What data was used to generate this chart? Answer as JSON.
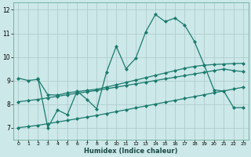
{
  "xlabel": "Humidex (Indice chaleur)",
  "background_color": "#cce8e8",
  "grid_color": "#b0cccc",
  "line_color": "#1a7a6e",
  "xlim": [
    -0.5,
    23.5
  ],
  "ylim": [
    6.5,
    12.3
  ],
  "yticks": [
    7,
    8,
    9,
    10,
    11,
    12
  ],
  "xticks": [
    0,
    1,
    2,
    3,
    4,
    5,
    6,
    7,
    8,
    9,
    10,
    11,
    12,
    13,
    14,
    15,
    16,
    17,
    18,
    19,
    20,
    21,
    22,
    23
  ],
  "line_main_x": [
    2,
    3,
    4,
    5,
    6,
    7,
    8,
    9,
    10,
    11,
    12,
    13,
    14,
    15,
    16,
    17,
    18,
    19,
    20,
    21,
    22,
    23
  ],
  "line_main_y": [
    9.1,
    7.0,
    7.75,
    7.55,
    8.55,
    8.2,
    7.8,
    9.35,
    10.45,
    9.5,
    9.95,
    11.05,
    11.8,
    11.5,
    11.65,
    11.35,
    10.65,
    9.65,
    8.6,
    8.55,
    7.85,
    7.85
  ],
  "line_upper_x": [
    0,
    1,
    2,
    3,
    4,
    5,
    6,
    7,
    8,
    9,
    10,
    11,
    12,
    13,
    14,
    15,
    16,
    17,
    18,
    19,
    20,
    21,
    22,
    23
  ],
  "line_upper_y": [
    9.1,
    9.0,
    9.05,
    8.4,
    8.38,
    8.48,
    8.53,
    8.58,
    8.63,
    8.72,
    8.82,
    8.92,
    9.02,
    9.12,
    9.22,
    9.32,
    9.42,
    9.52,
    9.6,
    9.65,
    9.68,
    9.7,
    9.72,
    9.73
  ],
  "line_mid_x": [
    0,
    1,
    2,
    3,
    4,
    5,
    6,
    7,
    8,
    9,
    10,
    11,
    12,
    13,
    14,
    15,
    16,
    17,
    18,
    19,
    20,
    21,
    22,
    23
  ],
  "line_mid_y": [
    8.1,
    8.15,
    8.2,
    8.27,
    8.33,
    8.4,
    8.46,
    8.52,
    8.58,
    8.65,
    8.72,
    8.79,
    8.86,
    8.93,
    9.0,
    9.07,
    9.14,
    9.21,
    9.28,
    9.35,
    9.42,
    9.49,
    9.42,
    9.38
  ],
  "line_lower_x": [
    0,
    1,
    2,
    3,
    4,
    5,
    6,
    7,
    8,
    9,
    10,
    11,
    12,
    13,
    14,
    15,
    16,
    17,
    18,
    19,
    20,
    21,
    22,
    23
  ],
  "line_lower_y": [
    7.0,
    7.05,
    7.1,
    7.17,
    7.24,
    7.31,
    7.38,
    7.45,
    7.52,
    7.6,
    7.68,
    7.76,
    7.84,
    7.92,
    8.0,
    8.08,
    8.16,
    8.24,
    8.32,
    8.4,
    8.48,
    8.56,
    8.64,
    8.72
  ]
}
